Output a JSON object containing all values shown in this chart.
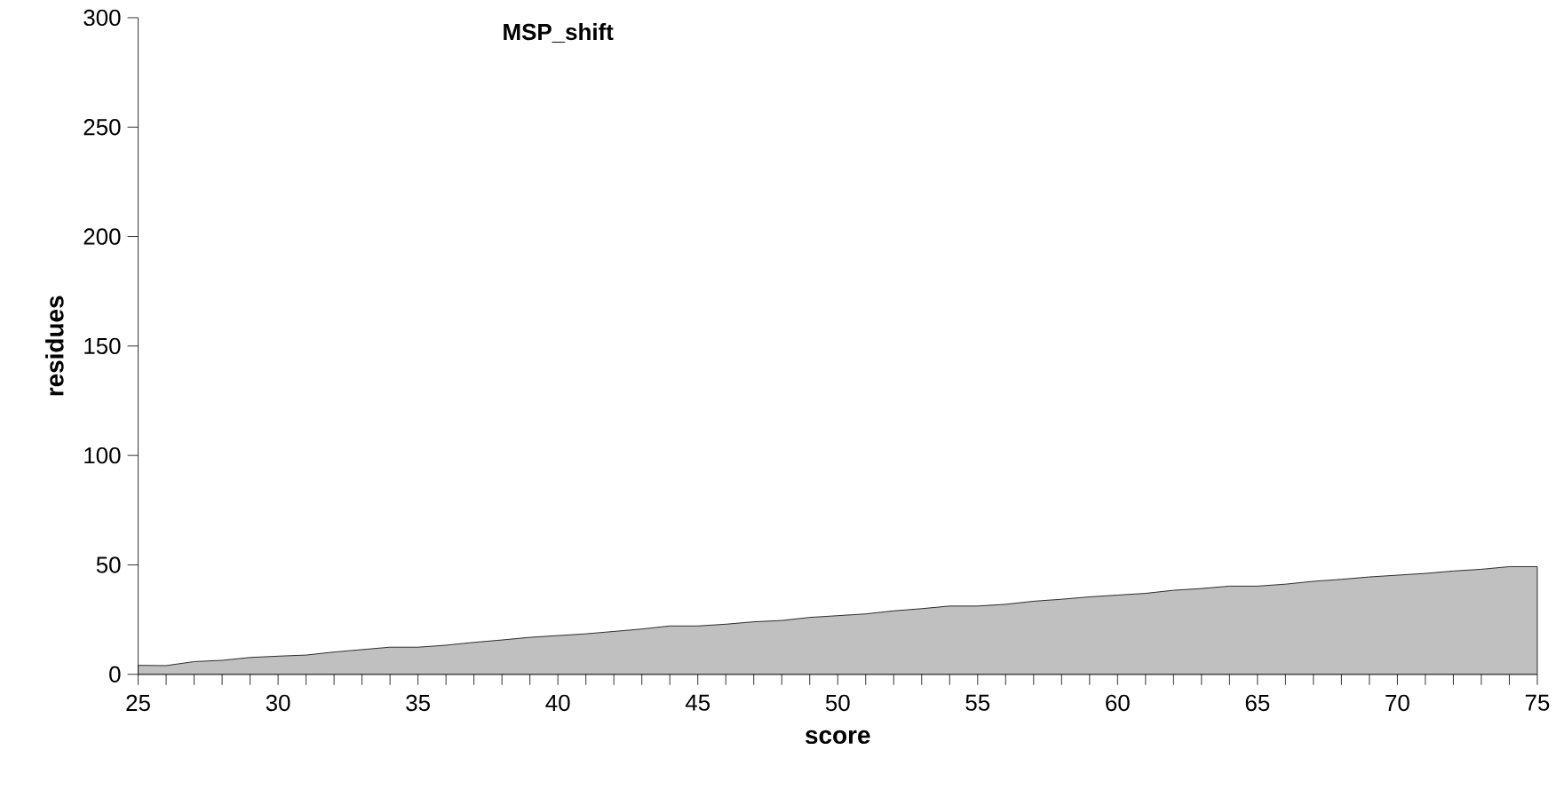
{
  "chart_data": {
    "type": "area",
    "title": "MSP_shift",
    "xlabel": "score",
    "ylabel": "residues",
    "x": [
      25,
      26,
      27,
      28,
      29,
      30,
      31,
      32,
      33,
      34,
      35,
      36,
      37,
      38,
      39,
      40,
      41,
      42,
      43,
      44,
      45,
      46,
      47,
      48,
      49,
      50,
      51,
      52,
      53,
      54,
      55,
      56,
      57,
      58,
      59,
      60,
      61,
      62,
      63,
      64,
      65,
      66,
      67,
      68,
      69,
      70,
      71,
      72,
      73,
      74,
      75
    ],
    "values": [
      4.1,
      4,
      5.8,
      6.4,
      7.7,
      8.3,
      8.8,
      10.2,
      11.3,
      12.4,
      12.4,
      13.3,
      14.6,
      15.7,
      16.9,
      17.7,
      18.5,
      19.6,
      20.7,
      22.1,
      22.1,
      22.9,
      24,
      24.6,
      26,
      26.8,
      27.6,
      29,
      30,
      31.2,
      31.2,
      32,
      33.4,
      34.3,
      35.4,
      36.2,
      37,
      38.4,
      39.2,
      40.3,
      40.3,
      41.2,
      42.5,
      43.4,
      44.5,
      45.3,
      46.1,
      47.2,
      48,
      49.2,
      49.2
    ],
    "color": "#c0c0c0",
    "xlim": [
      25,
      75
    ],
    "xticks": [
      25,
      30,
      35,
      40,
      45,
      50,
      55,
      60,
      65,
      70,
      75
    ],
    "ylim": [
      0,
      300
    ],
    "yticks": [
      0,
      50,
      100,
      150,
      200,
      250,
      300
    ]
  }
}
